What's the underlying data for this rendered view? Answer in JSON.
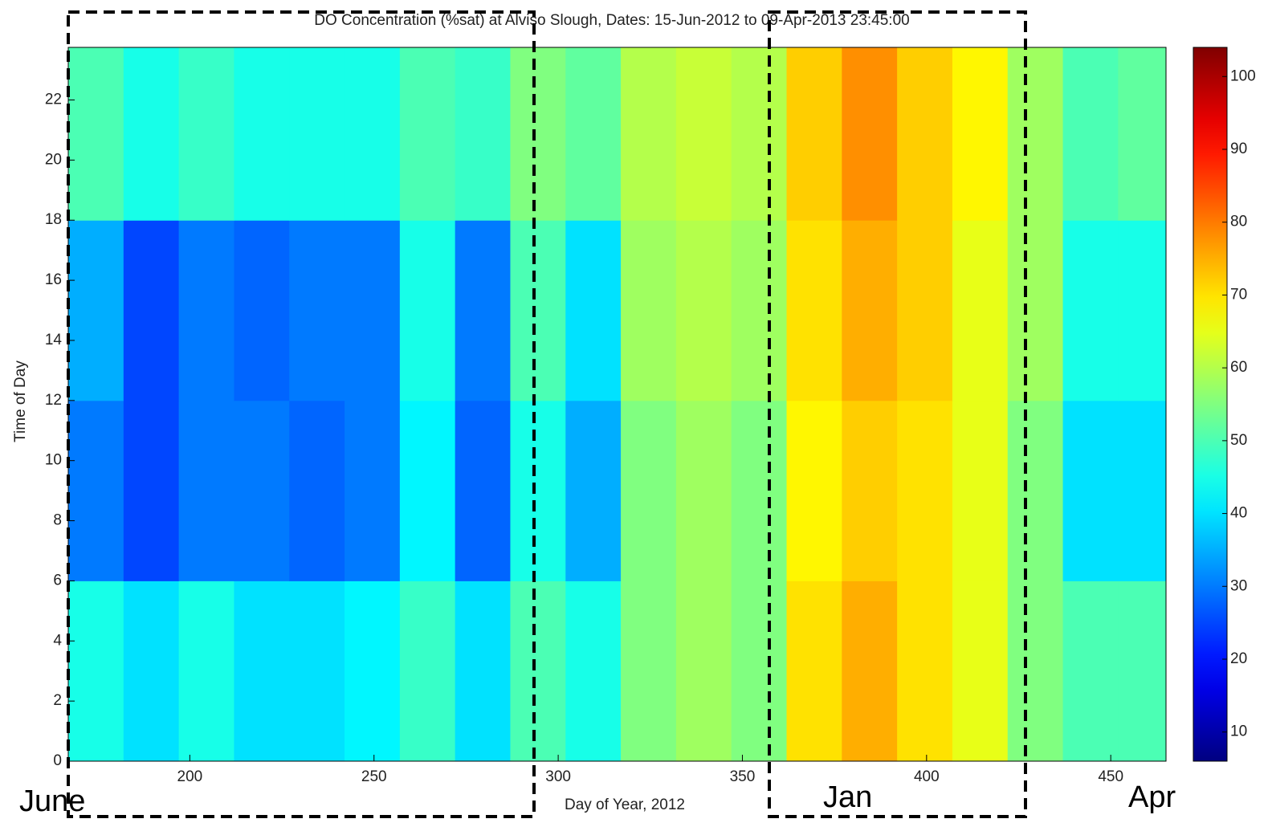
{
  "chart_data": {
    "type": "heatmap",
    "title": "DO Concentration (%sat) at Alviso Slough, Dates: 15-Jun-2012 to 09-Apr-2013 23:45:00",
    "x_label": "Day of Year, 2012",
    "y_label": "Time of Day",
    "annotations": [
      "June",
      "Jan",
      "Apr"
    ],
    "xbins": [
      167,
      182,
      197,
      212,
      227,
      242,
      257,
      272,
      287,
      302,
      317,
      332,
      347,
      362,
      377,
      392,
      407,
      422,
      437,
      452,
      465
    ],
    "ybins": [
      0,
      6,
      12,
      18,
      23.75
    ],
    "values": [
      [
        45,
        40,
        45,
        40,
        40,
        42,
        48,
        40,
        50,
        45,
        55,
        58,
        55,
        70,
        75,
        70,
        65,
        55,
        50,
        50
      ],
      [
        30,
        25,
        30,
        30,
        28,
        30,
        42,
        28,
        45,
        35,
        55,
        58,
        55,
        68,
        72,
        70,
        65,
        55,
        40,
        40
      ],
      [
        35,
        25,
        30,
        28,
        30,
        30,
        45,
        30,
        50,
        40,
        58,
        60,
        58,
        70,
        75,
        72,
        65,
        58,
        45,
        45
      ],
      [
        50,
        45,
        48,
        45,
        45,
        45,
        50,
        48,
        55,
        52,
        60,
        62,
        60,
        72,
        78,
        72,
        68,
        58,
        50,
        52
      ]
    ],
    "xlim": [
      167,
      465
    ],
    "ylim": [
      0,
      23.75
    ],
    "xticks": [
      200,
      250,
      300,
      350,
      400,
      450
    ],
    "yticks": [
      0,
      2,
      4,
      6,
      8,
      10,
      12,
      14,
      16,
      18,
      20,
      22
    ],
    "clim": [
      6,
      104
    ],
    "cticks": [
      10,
      20,
      30,
      40,
      50,
      60,
      70,
      80,
      90,
      100
    ],
    "colormap": "jet"
  }
}
